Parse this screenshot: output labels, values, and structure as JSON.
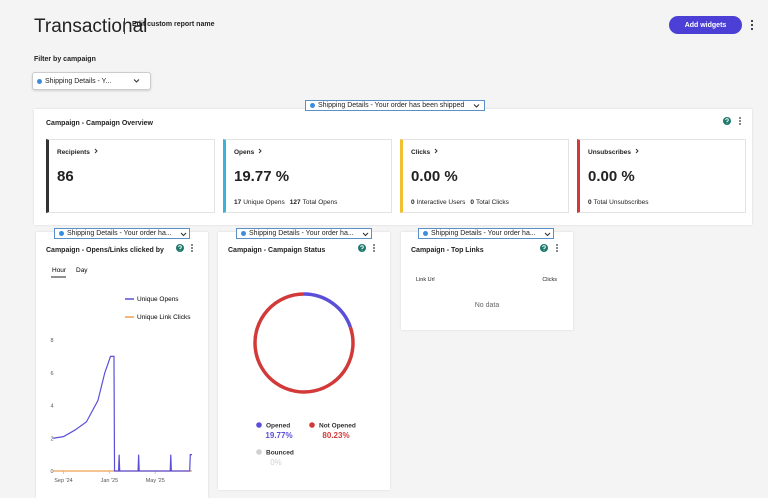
{
  "header": {
    "title": "Transactional",
    "subtitle": "Edit custom report name",
    "button": "Add widgets"
  },
  "filter": {
    "label": "Filter by campaign",
    "selected": "Shipping Details - Y..."
  },
  "overview": {
    "campaign": "Shipping Details - Your order has been shipped",
    "title": "Campaign - Campaign Overview",
    "cards": [
      {
        "label": "Recipients",
        "value": "86",
        "color": "#333333",
        "details": []
      },
      {
        "label": "Opens",
        "value": "19.77 %",
        "color": "#3bb3d8",
        "details": [
          {
            "count": "17",
            "label": "Unique Opens"
          },
          {
            "count": "127",
            "label": "Total Opens"
          }
        ]
      },
      {
        "label": "Clicks",
        "value": "0.00 %",
        "color": "#f0c030",
        "details": [
          {
            "count": "0",
            "label": "Interactive Users"
          },
          {
            "count": "0",
            "label": "Total Clicks"
          }
        ]
      },
      {
        "label": "Unsubscribes",
        "value": "0.00 %",
        "color": "#d23a3a",
        "details": [
          {
            "count": "0",
            "label": "Total Unsubscribes"
          }
        ]
      }
    ]
  },
  "opens_widget": {
    "campaign": "Shipping Details - Your order ha...",
    "title": "Campaign - Opens/Links clicked by",
    "tabs": [
      "Hour",
      "Day"
    ],
    "chart": {
      "type": "line",
      "x": [
        -0.9,
        0,
        1,
        2,
        3,
        3.6,
        4.1,
        4.4,
        4.45,
        4.8,
        4.85,
        4.9,
        6.5,
        6.55,
        6.6,
        9.3,
        9.35,
        9.4,
        11,
        11.05,
        11.2
      ],
      "series": [
        {
          "name": "Unique Opens",
          "color": "#5b4fd9",
          "values": [
            2,
            2.1,
            2.5,
            3,
            4.3,
            6,
            7,
            7,
            0,
            0,
            1,
            0,
            0,
            1,
            0,
            0,
            1,
            0,
            0,
            1,
            1
          ]
        },
        {
          "name": "Unique Link Clicks",
          "color": "#f0a050",
          "values": [
            0,
            0,
            0,
            0,
            0,
            0,
            0,
            0,
            0,
            0,
            0,
            0,
            0,
            0,
            0,
            0,
            0,
            0,
            0,
            0,
            0
          ]
        }
      ],
      "xlim": [
        -1,
        11.2
      ],
      "xticks": [
        {
          "value": 0,
          "label": "Sep '24"
        },
        {
          "value": 4,
          "label": "Jan '25"
        },
        {
          "value": 8,
          "label": "May '25"
        }
      ],
      "ylim": [
        0,
        8
      ],
      "yticks": [
        0,
        2,
        4,
        6,
        8
      ]
    }
  },
  "status_widget": {
    "campaign": "Shipping Details - Your order ha...",
    "title": "Campaign - Campaign Status",
    "chart": {
      "type": "pie",
      "categories": [
        "Opened",
        "Not Opened",
        "Bounced"
      ],
      "values": [
        19.77,
        80.23,
        0
      ],
      "value_labels": [
        "19.77%",
        "80.23%",
        "0%"
      ],
      "colors": [
        "#5b4fd9",
        "#d23a3a",
        "#d0d0d0"
      ]
    }
  },
  "links_widget": {
    "campaign": "Shipping Details - Your order ha...",
    "title": "Campaign - Top Links",
    "columns": [
      "Link Url",
      "Clicks"
    ],
    "empty": "No data"
  }
}
